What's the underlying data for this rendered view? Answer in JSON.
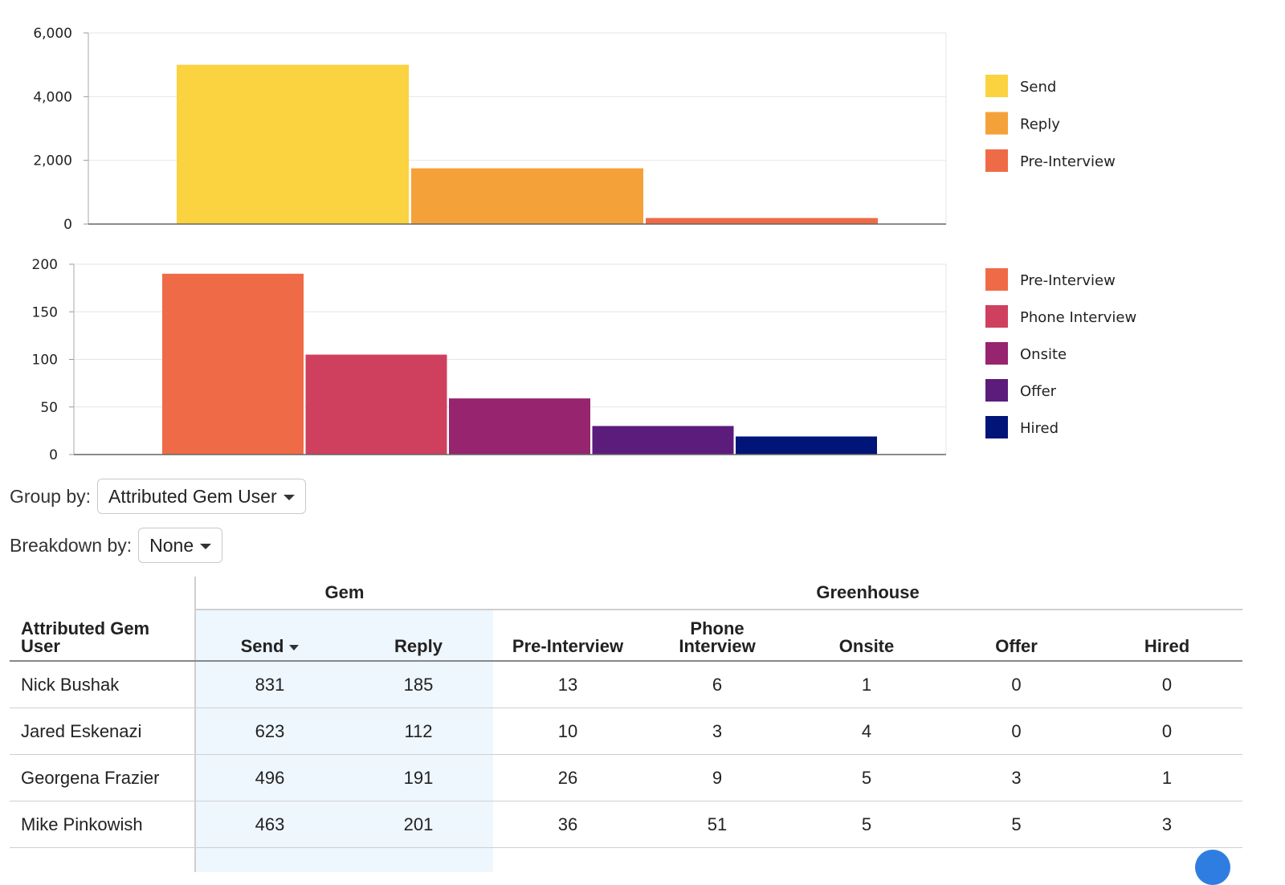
{
  "chart_data": [
    {
      "type": "bar",
      "categories": [
        "Send",
        "Reply",
        "Pre-Interview"
      ],
      "values": [
        5000,
        1750,
        190
      ],
      "colors": [
        "#fbd23f",
        "#f5a13a",
        "#ef6b47"
      ],
      "yticks": [
        "0",
        "2,000",
        "4,000",
        "6,000"
      ],
      "ylim": [
        0,
        6000
      ],
      "legend": [
        "Send",
        "Reply",
        "Pre-Interview"
      ],
      "legend_position": "right",
      "grid": true
    },
    {
      "type": "bar",
      "categories": [
        "Pre-Interview",
        "Phone Interview",
        "Onsite",
        "Offer",
        "Hired"
      ],
      "values": [
        190,
        105,
        59,
        30,
        19
      ],
      "colors": [
        "#ef6b47",
        "#cf405e",
        "#96246f",
        "#5c1c7b",
        "#001577"
      ],
      "yticks": [
        "0",
        "50",
        "100",
        "150",
        "200"
      ],
      "ylim": [
        0,
        200
      ],
      "legend": [
        "Pre-Interview",
        "Phone Interview",
        "Onsite",
        "Offer",
        "Hired"
      ],
      "legend_position": "right",
      "grid": true
    }
  ],
  "controls": {
    "group_by_label": "Group by:",
    "group_by_value": "Attributed Gem User",
    "breakdown_label": "Breakdown by:",
    "breakdown_value": "None"
  },
  "table": {
    "group_headers": {
      "gem": "Gem",
      "greenhouse": "Greenhouse"
    },
    "columns": {
      "user_line1": "Attributed Gem",
      "user_line2": "User",
      "send": "Send",
      "reply": "Reply",
      "pre_interview": "Pre-Interview",
      "phone_line1": "Phone",
      "phone_line2": "Interview",
      "onsite": "Onsite",
      "offer": "Offer",
      "hired": "Hired"
    },
    "rows": [
      {
        "user": "Nick Bushak",
        "send": "831",
        "reply": "185",
        "pre": "13",
        "phone": "6",
        "onsite": "1",
        "offer": "0",
        "hired": "0"
      },
      {
        "user": "Jared Eskenazi",
        "send": "623",
        "reply": "112",
        "pre": "10",
        "phone": "3",
        "onsite": "4",
        "offer": "0",
        "hired": "0"
      },
      {
        "user": "Georgena Frazier",
        "send": "496",
        "reply": "191",
        "pre": "26",
        "phone": "9",
        "onsite": "5",
        "offer": "3",
        "hired": "1"
      },
      {
        "user": "Mike Pinkowish",
        "send": "463",
        "reply": "201",
        "pre": "36",
        "phone": "51",
        "onsite": "5",
        "offer": "5",
        "hired": "3"
      }
    ]
  }
}
